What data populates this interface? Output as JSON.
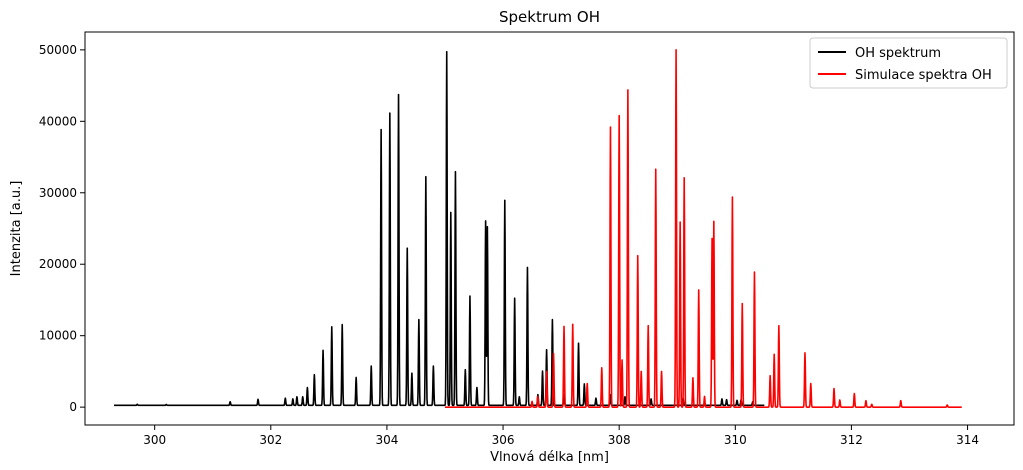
{
  "chart_data": {
    "type": "line",
    "title": "Spektrum OH",
    "xlabel": "Vlnová délka [nm]",
    "ylabel": "Intenzita [a.u.]",
    "xlim": [
      298.8,
      314.8
    ],
    "ylim": [
      -2500,
      52500
    ],
    "xticks": [
      300,
      302,
      304,
      306,
      308,
      310,
      312,
      314
    ],
    "yticks": [
      0,
      10000,
      20000,
      30000,
      40000,
      50000
    ],
    "grid": false,
    "legend_position": "top-right",
    "series": [
      {
        "name": "OH spektrum",
        "color": "#000000",
        "x_range": [
          299.3,
          310.5
        ],
        "baseline": 250,
        "peaks": [
          [
            299.7,
            150
          ],
          [
            300.2,
            120
          ],
          [
            301.3,
            500
          ],
          [
            301.78,
            850
          ],
          [
            302.25,
            1000
          ],
          [
            302.38,
            900
          ],
          [
            302.45,
            1200
          ],
          [
            302.55,
            1200
          ],
          [
            302.63,
            2500
          ],
          [
            302.75,
            4300
          ],
          [
            302.9,
            7700
          ],
          [
            303.05,
            11000
          ],
          [
            303.23,
            11300
          ],
          [
            303.47,
            3900
          ],
          [
            303.73,
            5500
          ],
          [
            303.9,
            38600
          ],
          [
            304.05,
            40900
          ],
          [
            304.2,
            43500
          ],
          [
            304.35,
            22000
          ],
          [
            304.43,
            4500
          ],
          [
            304.55,
            12000
          ],
          [
            304.67,
            32000
          ],
          [
            304.8,
            5500
          ],
          [
            305.03,
            49500
          ],
          [
            305.1,
            27000
          ],
          [
            305.18,
            32700
          ],
          [
            305.35,
            5000
          ],
          [
            305.43,
            15300
          ],
          [
            305.55,
            2500
          ],
          [
            305.7,
            25800
          ],
          [
            305.73,
            25000
          ],
          [
            306.03,
            28700
          ],
          [
            306.2,
            15000
          ],
          [
            306.28,
            1200
          ],
          [
            306.42,
            19300
          ],
          [
            306.6,
            1500
          ],
          [
            306.68,
            4800
          ],
          [
            306.75,
            7800
          ],
          [
            306.85,
            12000
          ],
          [
            307.05,
            1500
          ],
          [
            307.3,
            8700
          ],
          [
            307.4,
            3000
          ],
          [
            307.6,
            1000
          ],
          [
            307.85,
            1500
          ],
          [
            308.1,
            1200
          ],
          [
            308.55,
            900
          ],
          [
            309.1,
            1000
          ],
          [
            309.77,
            900
          ],
          [
            309.85,
            800
          ],
          [
            310.03,
            700
          ],
          [
            310.1,
            800
          ],
          [
            310.3,
            500
          ]
        ]
      },
      {
        "name": "Simulace spektra OH",
        "color": "#ff0000",
        "x_range": [
          305.0,
          313.9
        ],
        "baseline": 0,
        "peaks": [
          [
            306.5,
            800
          ],
          [
            306.6,
            1500
          ],
          [
            306.75,
            5000
          ],
          [
            306.87,
            7500
          ],
          [
            307.05,
            11300
          ],
          [
            307.2,
            11600
          ],
          [
            307.45,
            3300
          ],
          [
            307.7,
            5500
          ],
          [
            307.85,
            39200
          ],
          [
            308.0,
            40800
          ],
          [
            308.05,
            6600
          ],
          [
            308.15,
            44400
          ],
          [
            308.32,
            21200
          ],
          [
            308.38,
            5000
          ],
          [
            308.5,
            11400
          ],
          [
            308.63,
            33300
          ],
          [
            308.73,
            5000
          ],
          [
            308.98,
            50000
          ],
          [
            309.05,
            25900
          ],
          [
            309.12,
            32100
          ],
          [
            309.27,
            4100
          ],
          [
            309.37,
            16400
          ],
          [
            309.47,
            1500
          ],
          [
            309.6,
            23600
          ],
          [
            309.63,
            26000
          ],
          [
            309.95,
            29400
          ],
          [
            310.12,
            14500
          ],
          [
            310.33,
            18900
          ],
          [
            310.6,
            4400
          ],
          [
            310.67,
            7400
          ],
          [
            310.75,
            11400
          ],
          [
            311.2,
            7600
          ],
          [
            311.3,
            3300
          ],
          [
            311.7,
            2600
          ],
          [
            311.8,
            1000
          ],
          [
            312.05,
            1900
          ],
          [
            312.25,
            900
          ],
          [
            312.35,
            400
          ],
          [
            312.85,
            900
          ],
          [
            313.65,
            300
          ]
        ]
      }
    ]
  }
}
